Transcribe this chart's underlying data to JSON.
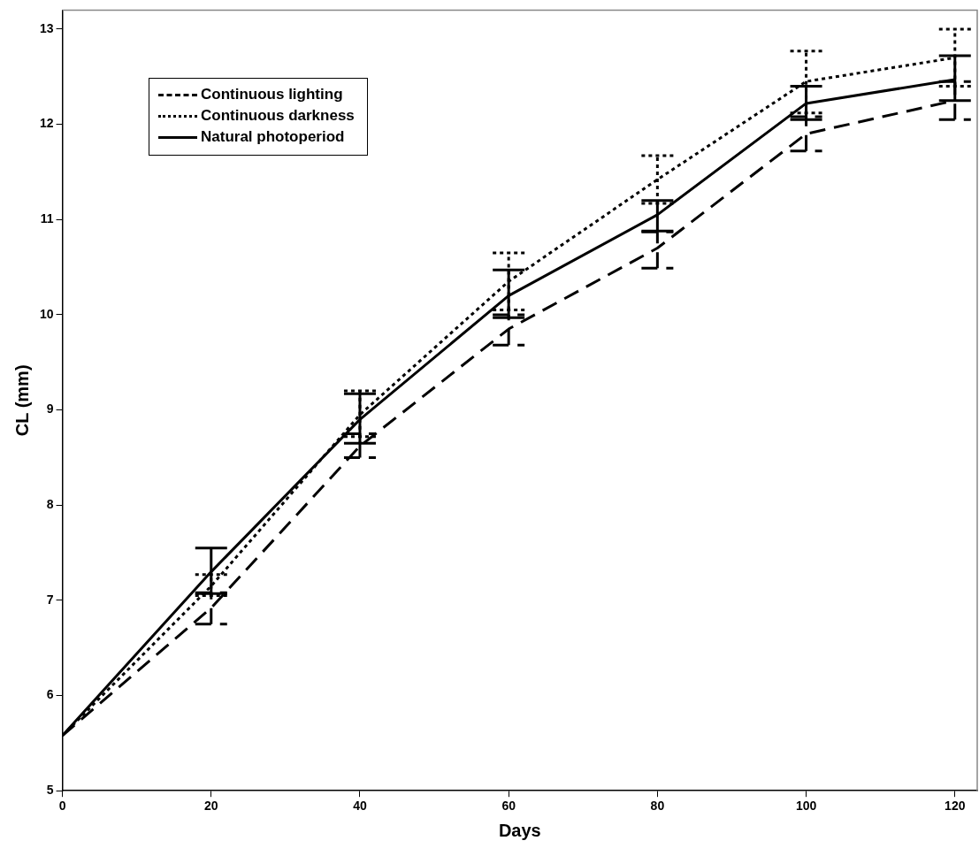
{
  "chart_data": {
    "type": "line",
    "xlabel": "Days",
    "ylabel": "CL (mm)",
    "x": [
      0,
      20,
      40,
      60,
      80,
      100,
      120
    ],
    "xlim": [
      0,
      123
    ],
    "xticks": [
      0,
      20,
      40,
      60,
      80,
      100,
      120
    ],
    "ylim": [
      5,
      13.2
    ],
    "yticks": [
      5,
      6,
      7,
      8,
      9,
      10,
      11,
      12,
      13
    ],
    "grid": false,
    "legend": "top left",
    "marker": "none",
    "series": [
      {
        "name": "Continuous lighting",
        "color": "#000000",
        "line_style": "dashed",
        "values": [
          5.58,
          6.92,
          8.62,
          9.85,
          10.7,
          11.9,
          12.25
        ],
        "errors": [
          null,
          [
            6.75,
            7.08
          ],
          [
            8.5,
            8.75
          ],
          [
            9.68,
            10.0
          ],
          [
            10.49,
            10.87
          ],
          [
            11.72,
            12.08
          ],
          [
            12.05,
            12.45
          ]
        ]
      },
      {
        "name": "Continuous darkness",
        "color": "#000000",
        "line_style": "dotted",
        "values": [
          5.58,
          7.15,
          8.95,
          10.35,
          11.42,
          12.45,
          12.7
        ],
        "errors": [
          null,
          [
            7.05,
            7.27
          ],
          [
            8.72,
            9.2
          ],
          [
            10.05,
            10.65
          ],
          [
            11.17,
            11.67
          ],
          [
            12.12,
            12.77
          ],
          [
            12.4,
            13.0
          ]
        ]
      },
      {
        "name": "Natural photoperiod",
        "color": "#000000",
        "line_style": "solid",
        "values": [
          5.58,
          7.3,
          8.9,
          10.2,
          11.05,
          12.22,
          12.47
        ],
        "errors": [
          null,
          [
            7.07,
            7.55
          ],
          [
            8.65,
            9.17
          ],
          [
            9.97,
            10.47
          ],
          [
            10.88,
            11.2
          ],
          [
            12.05,
            12.4
          ],
          [
            12.25,
            12.72
          ]
        ]
      }
    ]
  }
}
